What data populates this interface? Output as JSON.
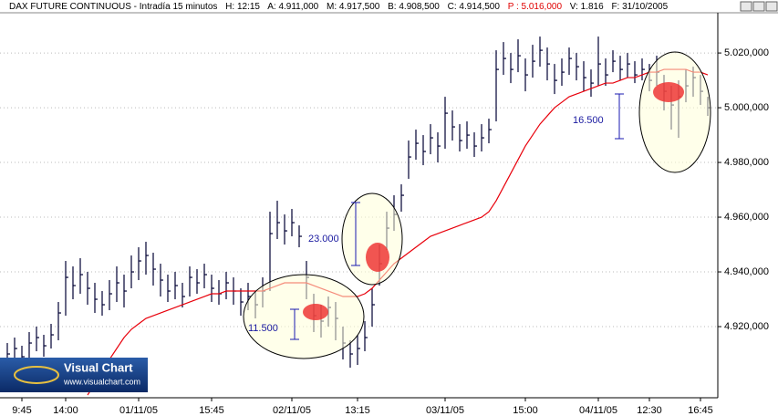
{
  "header": {
    "title": "DAX FUTURE CONTINUOUS - Intradía 15 minutos",
    "fields": [
      "H: 12:15",
      "A: 4.911,000",
      "M: 4.917,500",
      "B: 4.908,500",
      "C: 4.914,500",
      "P : 5.016,000",
      "V: 1.816",
      "F: 31/10/2005"
    ]
  },
  "logo": {
    "name": "Visual Chart",
    "url": "www.visualchart.com"
  },
  "chart_data": {
    "type": "hlc",
    "categories": [
      null,
      null,
      "9:45",
      null,
      null,
      null,
      null,
      null,
      "14:00",
      null,
      null,
      null,
      null,
      null,
      null,
      null,
      null,
      null,
      "01/11/05",
      null,
      null,
      null,
      null,
      null,
      null,
      null,
      null,
      null,
      "15:45",
      null,
      null,
      null,
      null,
      null,
      null,
      null,
      null,
      null,
      null,
      "02/11/05",
      null,
      null,
      null,
      null,
      null,
      null,
      null,
      null,
      "13:15",
      null,
      null,
      null,
      null,
      null,
      null,
      null,
      null,
      null,
      null,
      null,
      "03/11/05",
      null,
      null,
      null,
      null,
      null,
      null,
      null,
      null,
      null,
      null,
      "15:00",
      null,
      null,
      null,
      null,
      null,
      null,
      null,
      null,
      null,
      "04/11/05",
      null,
      null,
      null,
      null,
      null,
      null,
      "12:30",
      null,
      null,
      null,
      null,
      null,
      null,
      "16:45",
      null
    ],
    "high": [
      4914,
      4916,
      4913,
      4918,
      4920,
      4917,
      4921,
      4929,
      4944,
      4942,
      4945,
      4940,
      4936,
      4933,
      4937,
      4942,
      4939,
      4946,
      4949,
      4951,
      4947,
      4943,
      4939,
      4940,
      4936,
      4942,
      4941,
      4943,
      4939,
      4937,
      4940,
      4938,
      4934,
      4936,
      4933,
      4938,
      4962,
      4966,
      4961,
      4963,
      4957,
      4944,
      4932,
      4928,
      4931,
      4929,
      4920,
      4915,
      4917,
      4922,
      4934,
      4950,
      4962,
      4968,
      4972,
      4988,
      4992,
      4990,
      4994,
      4991,
      5004,
      4999,
      4994,
      4995,
      4991,
      4994,
      4996,
      5021,
      5024,
      5020,
      5025,
      5018,
      5023,
      5026,
      5022,
      5016,
      5018,
      5022,
      5020,
      5017,
      5014,
      5026,
      5018,
      5021,
      5019,
      5020,
      5017,
      5018,
      5016,
      5019,
      5012,
      5008,
      5010,
      5014,
      5015,
      5012,
      5004
    ],
    "low": [
      4903,
      4906,
      4904,
      4908,
      4911,
      4909,
      4912,
      4915,
      4924,
      4930,
      4932,
      4928,
      4925,
      4924,
      4926,
      4929,
      4927,
      4934,
      4937,
      4939,
      4935,
      4931,
      4929,
      4930,
      4927,
      4931,
      4932,
      4934,
      4929,
      4928,
      4930,
      4928,
      4924,
      4926,
      4923,
      4927,
      4933,
      4952,
      4950,
      4953,
      4949,
      4930,
      4918,
      4916,
      4920,
      4915,
      4908,
      4905,
      4906,
      4911,
      4920,
      4935,
      4948,
      4955,
      4962,
      4974,
      4981,
      4979,
      4983,
      4980,
      4985,
      4988,
      4984,
      4985,
      4982,
      4984,
      4987,
      4995,
      5012,
      5009,
      5013,
      5006,
      5011,
      5015,
      5010,
      5005,
      5008,
      5012,
      5010,
      5006,
      5004,
      5008,
      5008,
      5013,
      5010,
      5011,
      5009,
      5010,
      5006,
      5008,
      4999,
      4992,
      4989,
      5002,
      5004,
      5001,
      4997
    ],
    "close": [
      4910,
      4912,
      4909,
      4914,
      4916,
      4913,
      4917,
      4925,
      4938,
      4935,
      4939,
      4934,
      4930,
      4928,
      4932,
      4936,
      4933,
      4940,
      4944,
      4946,
      4941,
      4937,
      4933,
      4935,
      4931,
      4938,
      4936,
      4939,
      4934,
      4932,
      4936,
      4933,
      4929,
      4931,
      4928,
      4933,
      4954,
      4958,
      4955,
      4958,
      4953,
      4938,
      4924,
      4922,
      4927,
      4923,
      4914,
      4910,
      4912,
      4916,
      4928,
      4943,
      4956,
      4961,
      4968,
      4982,
      4987,
      4984,
      4989,
      4986,
      4998,
      4993,
      4988,
      4990,
      4986,
      4989,
      4992,
      5014,
      5018,
      5014,
      5019,
      5012,
      5017,
      5021,
      5016,
      5010,
      5013,
      5018,
      5015,
      5011,
      5009,
      5016,
      5012,
      5017,
      5014,
      5016,
      5012,
      5014,
      5010,
      5013,
      5006,
      5001,
      5004,
      5008,
      5011,
      5006,
      5000
    ],
    "bar_color": "#000033",
    "series": [
      {
        "color": "#e8000b",
        "values": [
          null,
          null,
          null,
          null,
          null,
          null,
          null,
          null,
          null,
          null,
          null,
          4895,
          4899,
          4903,
          4908,
          4912,
          4916,
          4919,
          4921,
          4923,
          4924,
          4925,
          4926,
          4927,
          4928,
          4929,
          4930,
          4931,
          4932,
          4932,
          4933,
          4933,
          4933,
          4933,
          4933,
          4933,
          4934,
          4935,
          4936,
          4936,
          4936,
          4936,
          4935,
          4934,
          4933,
          4932,
          4931,
          4931,
          4931,
          4932,
          4934,
          4937,
          4940,
          4943,
          4945,
          4947,
          4949,
          4951,
          4953,
          4954,
          4955,
          4956,
          4957,
          4958,
          4959,
          4960,
          4962,
          4966,
          4971,
          4976,
          4981,
          4986,
          4990,
          4994,
          4997,
          5000,
          5002,
          5004,
          5005,
          5006,
          5007,
          5008,
          5009,
          5009,
          5010,
          5011,
          5011,
          5012,
          5013,
          5013,
          5014,
          5014,
          5014,
          5014,
          5013,
          5013,
          5012
        ]
      }
    ],
    "ylim": [
      4894,
      5034.7
    ],
    "yticks": [
      {
        "value": 4920,
        "label": "4.920,000"
      },
      {
        "value": 4940,
        "label": "4.940,000"
      },
      {
        "value": 4960,
        "label": "4.960,000"
      },
      {
        "value": 4980,
        "label": "4.980,000"
      },
      {
        "value": 5000,
        "label": "5.000,000"
      },
      {
        "value": 5020,
        "label": "5.020,000"
      }
    ],
    "grid": true,
    "annotations": [
      "11.500",
      "23.000",
      "16.500"
    ]
  }
}
